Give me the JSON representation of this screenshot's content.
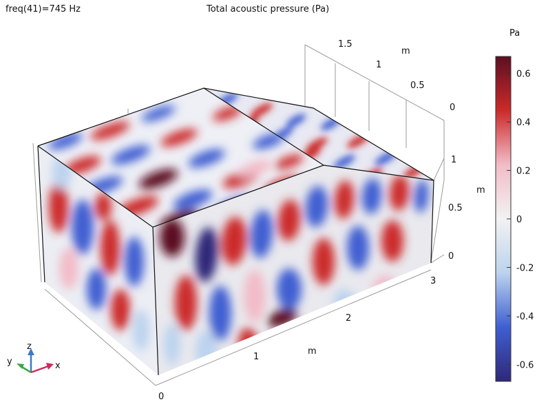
{
  "header": {
    "frequency": "freq(41)=745 Hz",
    "title": "Total acoustic pressure (Pa)"
  },
  "chart_data": {
    "type": "heatmap",
    "title": "Total acoustic pressure (Pa)",
    "subtitle": "freq(41)=745 Hz",
    "quantity": "Total acoustic pressure",
    "unit": "Pa",
    "frequency_hz": 745,
    "axes": {
      "x": {
        "label": "m",
        "ticks": [
          "0",
          "1",
          "2",
          "3"
        ],
        "range": [
          0,
          3
        ]
      },
      "y": {
        "label": "m",
        "ticks": [
          "0",
          "0.5",
          "1",
          "1.5"
        ],
        "range": [
          0,
          1.5
        ]
      },
      "z": {
        "label": "m",
        "ticks": [
          "0",
          "0.5",
          "1"
        ],
        "range": [
          0,
          1
        ]
      }
    },
    "colorbar": {
      "title": "Pa",
      "ticks": [
        "0.6",
        "0.4",
        "0.2",
        "0",
        "-0.2",
        "-0.4",
        "-0.6"
      ],
      "tick_values": [
        0.6,
        0.4,
        0.2,
        0,
        -0.2,
        -0.4,
        -0.6
      ],
      "range": [
        -0.67,
        0.67
      ],
      "colors": [
        "#2e2878",
        "#3f5fd1",
        "#bcd3ee",
        "#f2f2f2",
        "#f2bcc8",
        "#cc2a2a",
        "#5c0f22"
      ]
    },
    "triad": {
      "x": "x",
      "y": "y",
      "z": "z"
    },
    "grid": true
  }
}
